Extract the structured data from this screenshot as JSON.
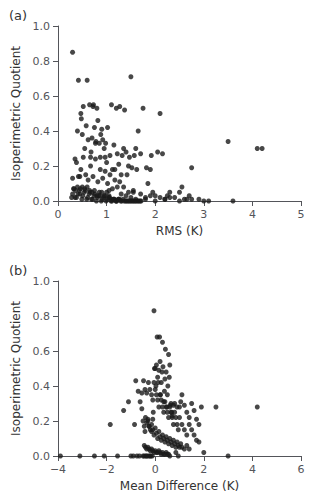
{
  "chart_data": [
    {
      "type": "scatter",
      "title": "(a)",
      "xlabel": "RMS (K)",
      "ylabel": "Isoperimetric Quotient",
      "color": "#1a1a1a",
      "grid": false,
      "xlim": [
        0,
        5
      ],
      "ylim": [
        0.0,
        1.0
      ],
      "xticks": [
        0,
        1,
        2,
        3,
        4,
        5
      ],
      "yticks": [
        {
          "value": 0.0,
          "label": "0.0"
        },
        0.2,
        0.4,
        0.6,
        0.8,
        {
          "value": 1.0,
          "label": "1.0"
        }
      ],
      "x": [
        0.3,
        0.35,
        0.4,
        0.42,
        0.45,
        0.47,
        0.48,
        0.5,
        0.52,
        0.55,
        0.58,
        0.6,
        0.62,
        0.65,
        0.67,
        0.68,
        0.7,
        0.72,
        0.73,
        0.75,
        0.77,
        0.78,
        0.8,
        0.82,
        0.85,
        0.87,
        0.88,
        0.9,
        0.92,
        0.95,
        0.97,
        0.98,
        1.0,
        1.02,
        1.05,
        1.07,
        1.1,
        1.12,
        1.15,
        1.17,
        1.2,
        1.22,
        1.25,
        1.27,
        1.3,
        1.32,
        1.35,
        1.37,
        1.4,
        1.42,
        1.45,
        1.47,
        1.5,
        1.52,
        1.55,
        1.57,
        1.6,
        1.62,
        1.65,
        1.7,
        1.75,
        1.8,
        1.82,
        1.85,
        1.9,
        1.92,
        1.95,
        2.0,
        2.05,
        2.1,
        2.15,
        2.2,
        2.25,
        2.3,
        2.4,
        2.5,
        2.55,
        2.65,
        2.7,
        2.75,
        2.9,
        3.0,
        3.1,
        3.5,
        3.6,
        4.1,
        4.2,
        0.3,
        0.32,
        0.35,
        0.38,
        0.4,
        0.42,
        0.45,
        0.47,
        0.5,
        0.52,
        0.55,
        0.57,
        0.6,
        0.62,
        0.65,
        0.67,
        0.7,
        0.72,
        0.75,
        0.77,
        0.8,
        0.82,
        0.85,
        0.87,
        0.9,
        0.92,
        0.95,
        0.97,
        1.0,
        1.02,
        1.05,
        1.07,
        1.1,
        1.12,
        1.15,
        1.17,
        1.2,
        1.22,
        1.25,
        1.27,
        1.3,
        1.35,
        1.4,
        1.45,
        1.5,
        1.55,
        1.6,
        1.7,
        1.8,
        1.9,
        2.0,
        2.1,
        2.2,
        2.3,
        2.5,
        2.6,
        2.75,
        0.28,
        0.3,
        0.33,
        0.36,
        0.38,
        0.41,
        0.44,
        0.46,
        0.49,
        0.51,
        0.54,
        0.56,
        0.59,
        0.61,
        0.64,
        0.66,
        0.69,
        0.71,
        0.74,
        0.76,
        0.79,
        0.81,
        0.84,
        0.86,
        0.89,
        0.91,
        0.94,
        0.96,
        0.99,
        1.01,
        1.04,
        1.06,
        1.09,
        1.11,
        1.14,
        1.16,
        1.19,
        1.21,
        1.24,
        1.26,
        1.29,
        1.31,
        1.34,
        1.36,
        1.39,
        1.41,
        1.44,
        1.46,
        1.49,
        1.51,
        1.54,
        1.56,
        1.59,
        1.61,
        1.64,
        1.66,
        1.69,
        1.71
      ],
      "values": [
        0.85,
        0.24,
        0.4,
        0.69,
        0.14,
        0.5,
        0.47,
        0.38,
        0.54,
        0.3,
        0.43,
        0.69,
        0.35,
        0.55,
        0.25,
        0.28,
        0.36,
        0.54,
        0.55,
        0.42,
        0.33,
        0.34,
        0.53,
        0.46,
        0.33,
        0.25,
        0.38,
        0.41,
        0.35,
        0.3,
        0.25,
        0.33,
        0.22,
        0.42,
        0.06,
        0.26,
        0.55,
        0.18,
        0.32,
        0.18,
        0.53,
        0.27,
        0.21,
        0.54,
        0.15,
        0.26,
        0.3,
        0.52,
        0.28,
        0.15,
        0.2,
        0.25,
        0.71,
        0.19,
        0.05,
        0.26,
        0.3,
        0.18,
        0.4,
        0.27,
        0.53,
        0.02,
        0.19,
        0.1,
        0.18,
        0.26,
        0.05,
        0.03,
        0.28,
        0.5,
        0.27,
        0.01,
        0.03,
        0.05,
        0.02,
        0.05,
        0.08,
        0.01,
        0.03,
        0.19,
        0.01,
        0.0,
        0.0,
        0.34,
        0.0,
        0.3,
        0.3,
        0.13,
        0.07,
        0.02,
        0.22,
        0.08,
        0.14,
        0.04,
        0.18,
        0.08,
        0.25,
        0.07,
        0.15,
        0.08,
        0.12,
        0.06,
        0.2,
        0.05,
        0.14,
        0.06,
        0.24,
        0.03,
        0.11,
        0.05,
        0.18,
        0.05,
        0.13,
        0.03,
        0.17,
        0.05,
        0.1,
        0.03,
        0.15,
        0.01,
        0.07,
        0.01,
        0.12,
        0.0,
        0.08,
        0.01,
        0.11,
        0.04,
        0.08,
        0.03,
        0.05,
        0.02,
        0.06,
        0.01,
        0.04,
        0.01,
        0.03,
        0.0,
        0.02,
        0.01,
        0.02,
        0.0,
        0.01,
        0.01,
        0.02,
        0.04,
        0.07,
        0.06,
        0.02,
        0.04,
        0.06,
        0.07,
        0.01,
        0.03,
        0.05,
        0.06,
        0.01,
        0.02,
        0.04,
        0.05,
        0.01,
        0.01,
        0.03,
        0.04,
        0.0,
        0.02,
        0.03,
        0.03,
        0.0,
        0.01,
        0.02,
        0.03,
        0.0,
        0.01,
        0.02,
        0.02,
        0.0,
        0.0,
        0.01,
        0.01,
        0.0,
        0.0,
        0.01,
        0.01,
        0.0,
        0.0,
        0.01,
        0.0,
        0.0,
        0.0,
        0.0,
        0.0,
        0.0,
        0.0,
        0.0,
        0.0,
        0.0,
        0.0,
        0.0,
        0.0,
        0.0,
        0.0
      ]
    },
    {
      "type": "scatter",
      "title": "(b)",
      "xlabel": "Mean Difference (K)",
      "ylabel": "Isoperimetric Quotient",
      "color": "#1a1a1a",
      "grid": false,
      "xlim": [
        -4,
        6
      ],
      "ylim": [
        0.0,
        1.0
      ],
      "xticks": [
        {
          "value": -4,
          "label": "−4"
        },
        {
          "value": -2,
          "label": "−2"
        },
        0,
        2,
        4,
        6
      ],
      "yticks": [
        {
          "value": 0.0,
          "label": "0.0"
        },
        0.2,
        0.4,
        0.6,
        0.8,
        {
          "value": 1.0,
          "label": "1.0"
        }
      ],
      "x": [
        -3.9,
        -3.1,
        -2.5,
        -2.1,
        -1.85,
        -1.55,
        -1.3,
        -1.1,
        -1.0,
        -0.9,
        -0.85,
        -0.75,
        -0.65,
        -0.55,
        -0.5,
        -0.45,
        -0.42,
        -0.38,
        -0.35,
        -0.3,
        -0.28,
        -0.25,
        -0.22,
        -0.18,
        -0.15,
        -0.12,
        -0.1,
        -0.08,
        -0.05,
        -0.03,
        0.0,
        0.03,
        0.05,
        0.08,
        0.1,
        0.12,
        0.15,
        0.18,
        0.2,
        0.22,
        0.25,
        0.28,
        0.3,
        0.32,
        0.35,
        0.38,
        0.4,
        0.42,
        0.45,
        0.48,
        0.5,
        0.52,
        0.55,
        0.58,
        0.6,
        0.62,
        0.65,
        0.68,
        0.7,
        0.75,
        0.8,
        0.85,
        0.9,
        0.95,
        1.0,
        1.05,
        1.1,
        1.2,
        1.3,
        1.4,
        1.5,
        1.6,
        1.7,
        1.8,
        1.9,
        2.0,
        2.5,
        3.0,
        4.2,
        -0.8,
        -0.7,
        -0.62,
        -0.55,
        -0.48,
        -0.42,
        -0.35,
        -0.28,
        -0.22,
        -0.15,
        -0.1,
        -0.05,
        0.0,
        0.05,
        0.1,
        0.15,
        0.2,
        0.25,
        0.3,
        0.35,
        0.4,
        0.45,
        0.5,
        0.55,
        0.6,
        0.65,
        0.7,
        0.75,
        0.8,
        0.85,
        0.9,
        0.95,
        1.0,
        1.1,
        1.2,
        1.3,
        1.4,
        1.5,
        1.6,
        1.7,
        1.8,
        -0.5,
        -0.45,
        -0.4,
        -0.35,
        -0.3,
        -0.25,
        -0.2,
        -0.15,
        -0.1,
        -0.05,
        0.0,
        0.05,
        0.1,
        0.15,
        0.2,
        0.25,
        0.3,
        0.35,
        0.4,
        0.45,
        0.5,
        0.55,
        0.6,
        0.65,
        0.7,
        0.75,
        0.8,
        0.85,
        0.9,
        0.95,
        1.0,
        1.05,
        1.1,
        1.2,
        1.3,
        1.4,
        -0.45,
        -0.4,
        -0.35,
        -0.3,
        -0.25,
        -0.2,
        -0.15,
        -0.1,
        -0.05,
        0.0,
        0.05,
        0.1,
        0.15,
        0.2,
        0.25,
        0.3,
        0.35,
        0.4,
        0.45,
        0.5,
        0.55,
        0.6
      ],
      "values": [
        0.0,
        0.0,
        0.0,
        0.0,
        0.18,
        0.0,
        0.26,
        0.31,
        0.0,
        0.0,
        0.18,
        0.0,
        0.0,
        0.27,
        0.0,
        0.0,
        0.14,
        0.0,
        0.0,
        0.21,
        0.0,
        0.17,
        0.0,
        0.0,
        0.14,
        0.0,
        0.21,
        0.25,
        0.83,
        0.5,
        0.5,
        0.4,
        0.52,
        0.68,
        0.45,
        0.42,
        0.49,
        0.68,
        0.54,
        0.35,
        0.42,
        0.48,
        0.65,
        0.51,
        0.31,
        0.37,
        0.44,
        0.61,
        0.48,
        0.28,
        0.35,
        0.4,
        0.58,
        0.45,
        0.52,
        0.29,
        0.3,
        0.25,
        0.23,
        0.29,
        0.3,
        0.02,
        0.28,
        0.0,
        0.28,
        0.31,
        0.35,
        0.29,
        0.25,
        0.22,
        0.3,
        0.26,
        0.21,
        0.18,
        0.28,
        0.02,
        0.28,
        0.0,
        0.28,
        0.43,
        0.37,
        0.31,
        0.36,
        0.43,
        0.38,
        0.36,
        0.42,
        0.38,
        0.35,
        0.32,
        0.42,
        0.38,
        0.35,
        0.32,
        0.28,
        0.35,
        0.32,
        0.28,
        0.25,
        0.31,
        0.28,
        0.25,
        0.22,
        0.28,
        0.25,
        0.22,
        0.18,
        0.25,
        0.22,
        0.18,
        0.15,
        0.22,
        0.18,
        0.15,
        0.12,
        0.18,
        0.15,
        0.12,
        0.09,
        0.08,
        0.2,
        0.17,
        0.22,
        0.19,
        0.2,
        0.17,
        0.15,
        0.18,
        0.15,
        0.12,
        0.16,
        0.13,
        0.1,
        0.14,
        0.11,
        0.09,
        0.12,
        0.1,
        0.08,
        0.11,
        0.09,
        0.07,
        0.1,
        0.08,
        0.06,
        0.09,
        0.07,
        0.05,
        0.08,
        0.06,
        0.05,
        0.07,
        0.05,
        0.04,
        0.06,
        0.04,
        0.06,
        0.05,
        0.04,
        0.05,
        0.04,
        0.03,
        0.04,
        0.03,
        0.02,
        0.03,
        0.02,
        0.02,
        0.03,
        0.02,
        0.01,
        0.02,
        0.01,
        0.01,
        0.02,
        0.01,
        0.01,
        0.0
      ]
    }
  ]
}
